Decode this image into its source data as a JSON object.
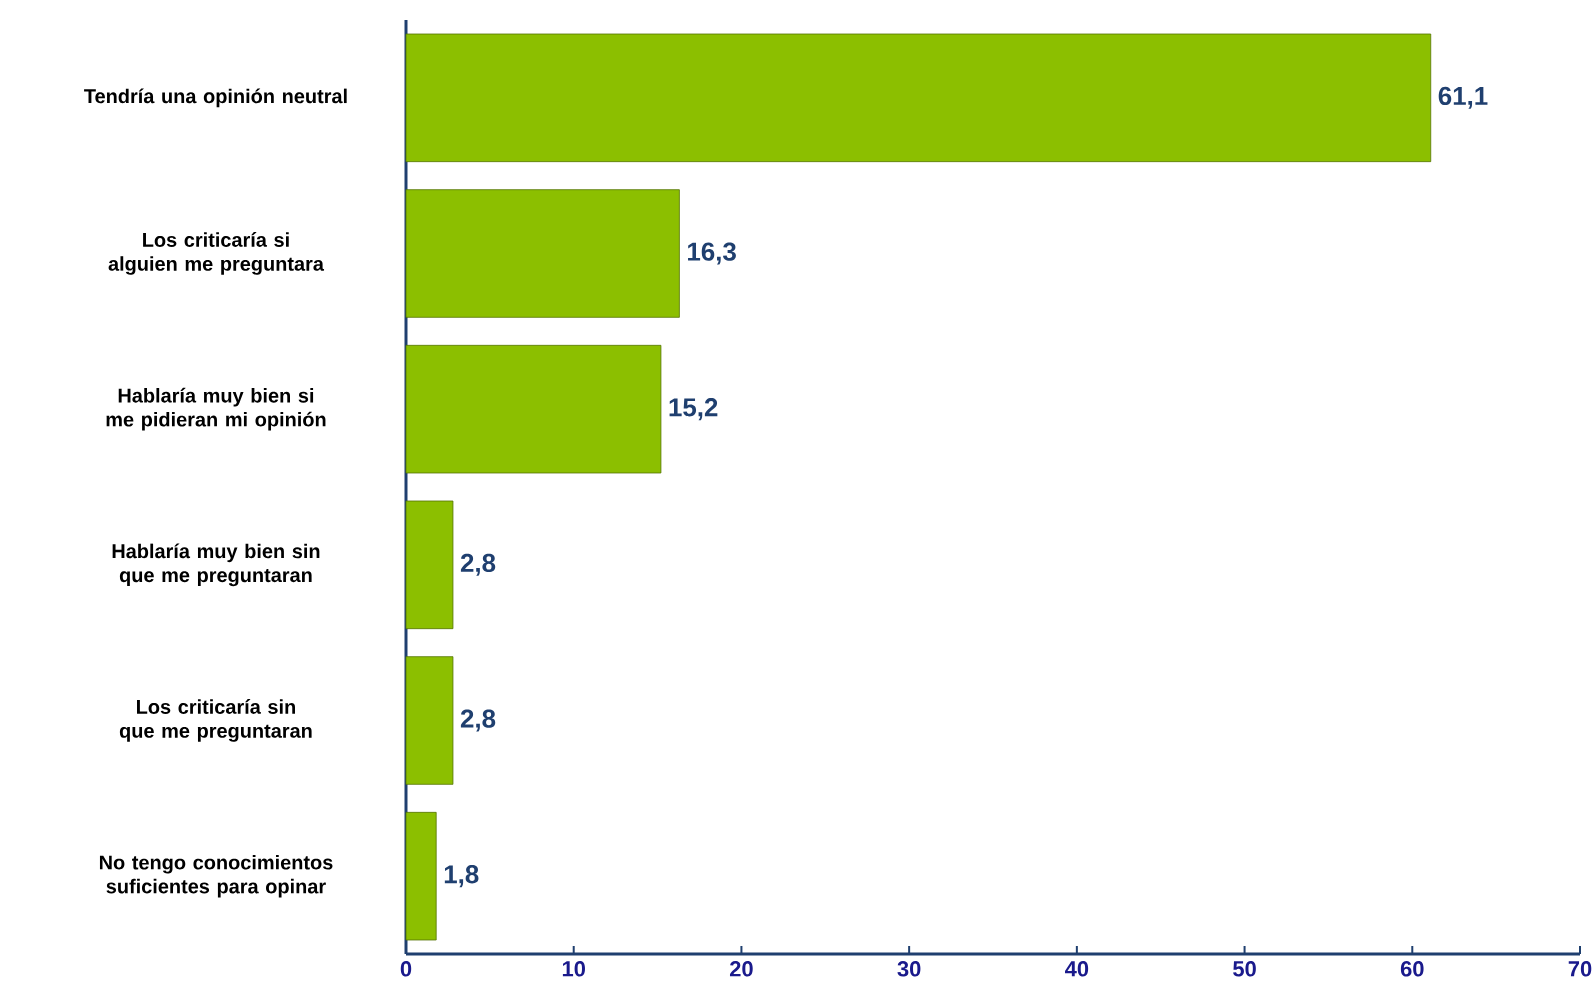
{
  "chart_data": {
    "type": "bar",
    "orientation": "horizontal",
    "categories": [
      "Tendría una opinión neutral",
      "Los criticaría si alguien me preguntara",
      "Hablaría muy bien si me pidieran mi opinión",
      "Hablaría muy bien sin que me preguntaran",
      "Los criticaría sin que me preguntaran",
      "No tengo conocimientos suficientes para opinar"
    ],
    "values": [
      61.1,
      16.3,
      15.2,
      2.8,
      2.8,
      1.8
    ],
    "value_labels": [
      "61,1",
      "16,3",
      "15,2",
      "2,8",
      "2,8",
      "1,8"
    ],
    "color": "#8cbf00",
    "xlim": [
      0,
      70
    ],
    "xticks": [
      0,
      10,
      20,
      30,
      40,
      50,
      60,
      70
    ]
  }
}
